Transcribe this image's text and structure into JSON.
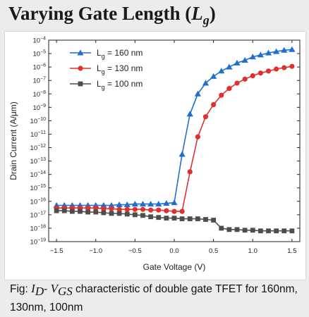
{
  "slide": {
    "title_text": "Varying Gate Length (",
    "title_symbol": "L",
    "title_sub": "g",
    "title_close": ")"
  },
  "caption": {
    "prefix": "Fig: ",
    "id_sym": "I",
    "id_sub": "D",
    "dash": "- ",
    "vgs_sym": "V",
    "vgs_sub": "GS",
    "rest": " characteristic of double gate TFET for 160nm, 130nm, 100nm"
  },
  "chart_data": {
    "type": "line",
    "xlabel": "Gate Voltage (V)",
    "ylabel": "Drain Current (A/μm)",
    "xlim": [
      -1.6,
      1.6
    ],
    "ylim_exp": [
      -19,
      -4
    ],
    "y_scale": "log",
    "x_ticks": [
      "-1.5",
      "-1.0",
      "-0.5",
      "0.0",
      "0.5",
      "1.0",
      "1.5"
    ],
    "x_tick_values": [
      -1.5,
      -1.0,
      -0.5,
      0.0,
      0.5,
      1.0,
      1.5
    ],
    "y_tick_exponents": [
      -4,
      -5,
      -6,
      -7,
      -8,
      -9,
      -10,
      -11,
      -12,
      -13,
      -14,
      -15,
      -16,
      -17,
      -18,
      -19
    ],
    "legend_position": "top-left",
    "series": [
      {
        "name": "Lg = 160 nm",
        "legend_main": "L",
        "legend_sub": "g",
        "legend_rest": " = 160 nm",
        "color": "#1f6fd1",
        "marker": "triangle",
        "x": [
          -1.5,
          -1.4,
          -1.3,
          -1.2,
          -1.1,
          -1.0,
          -0.9,
          -0.8,
          -0.7,
          -0.6,
          -0.5,
          -0.4,
          -0.3,
          -0.2,
          -0.1,
          0.0,
          0.1,
          0.2,
          0.3,
          0.4,
          0.5,
          0.6,
          0.7,
          0.8,
          0.9,
          1.0,
          1.1,
          1.2,
          1.3,
          1.4,
          1.5
        ],
        "y_exp": [
          -16.3,
          -16.3,
          -16.3,
          -16.3,
          -16.3,
          -16.3,
          -16.3,
          -16.3,
          -16.25,
          -16.25,
          -16.2,
          -16.2,
          -16.2,
          -16.2,
          -16.15,
          -16.1,
          -12.5,
          -9.5,
          -8.0,
          -7.2,
          -6.7,
          -6.3,
          -6.0,
          -5.7,
          -5.5,
          -5.25,
          -5.1,
          -4.95,
          -4.85,
          -4.75,
          -4.7
        ]
      },
      {
        "name": "Lg = 130 nm",
        "legend_main": "L",
        "legend_sub": "g",
        "legend_rest": " = 130 nm",
        "color": "#e0302e",
        "marker": "circle",
        "x": [
          -1.5,
          -1.4,
          -1.3,
          -1.2,
          -1.1,
          -1.0,
          -0.9,
          -0.8,
          -0.7,
          -0.6,
          -0.5,
          -0.4,
          -0.3,
          -0.2,
          -0.1,
          0.0,
          0.1,
          0.2,
          0.3,
          0.4,
          0.5,
          0.6,
          0.7,
          0.8,
          0.9,
          1.0,
          1.1,
          1.2,
          1.3,
          1.4,
          1.5
        ],
        "y_exp": [
          -16.5,
          -16.5,
          -16.5,
          -16.5,
          -16.5,
          -16.5,
          -16.55,
          -16.55,
          -16.6,
          -16.6,
          -16.6,
          -16.6,
          -16.65,
          -16.65,
          -16.7,
          -16.75,
          -16.75,
          -13.8,
          -11.2,
          -9.7,
          -8.8,
          -8.1,
          -7.6,
          -7.2,
          -6.9,
          -6.65,
          -6.45,
          -6.3,
          -6.15,
          -6.05,
          -5.95
        ]
      },
      {
        "name": "Lg = 100 nm",
        "legend_main": "L",
        "legend_sub": "g",
        "legend_rest": " = 100 nm",
        "color": "#4d4d4d",
        "marker": "square",
        "x": [
          -1.5,
          -1.4,
          -1.3,
          -1.2,
          -1.1,
          -1.0,
          -0.9,
          -0.8,
          -0.7,
          -0.6,
          -0.5,
          -0.4,
          -0.3,
          -0.2,
          -0.1,
          0.0,
          0.1,
          0.2,
          0.3,
          0.4,
          0.5,
          0.6,
          0.7,
          0.8,
          0.9,
          1.0,
          1.1,
          1.2,
          1.3,
          1.4,
          1.5
        ],
        "y_exp": [
          -16.7,
          -16.7,
          -16.75,
          -16.75,
          -16.8,
          -16.8,
          -16.85,
          -16.9,
          -16.9,
          -16.95,
          -17.0,
          -17.05,
          -17.15,
          -17.2,
          -17.25,
          -17.25,
          -17.3,
          -17.3,
          -17.3,
          -17.35,
          -17.4,
          -18.0,
          -18.1,
          -18.1,
          -18.15,
          -18.15,
          -18.2,
          -18.2,
          -18.2,
          -18.2,
          -18.2
        ]
      }
    ]
  }
}
